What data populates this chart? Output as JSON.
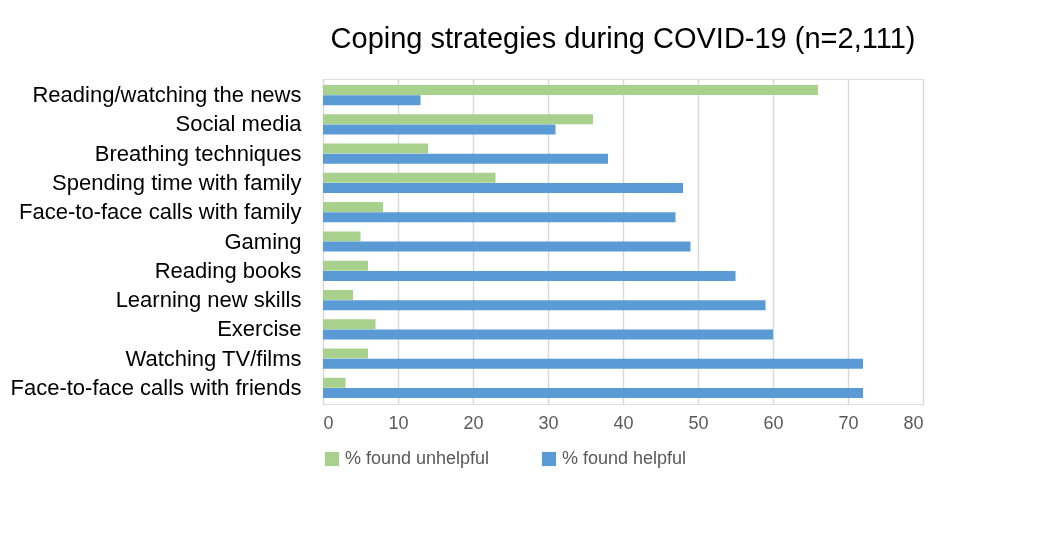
{
  "chart_data": {
    "type": "bar",
    "orientation": "horizontal",
    "title": "Coping strategies during COVID-19 (n=2,111)",
    "categories": [
      "Reading/watching the news",
      "Social media",
      "Breathing techniques",
      "Spending time with family",
      "Face-to-face calls with family",
      "Gaming",
      "Reading books",
      "Learning new skills",
      "Exercise",
      "Watching TV/films",
      "Face-to-face calls with friends"
    ],
    "series": [
      {
        "name": "% found unhelpful",
        "color": "#a9d18e",
        "values": [
          66,
          36,
          14,
          23,
          8,
          5,
          6,
          4,
          7,
          6,
          3
        ]
      },
      {
        "name": "% found helpful",
        "color": "#5b9bd5",
        "values": [
          13,
          31,
          38,
          48,
          47,
          49,
          55,
          59,
          60,
          72,
          72
        ]
      }
    ],
    "xlim": [
      0,
      80
    ],
    "xticks": [
      0,
      10,
      20,
      30,
      40,
      50,
      60,
      70,
      80
    ],
    "grid": "x",
    "legend": "bottom"
  }
}
